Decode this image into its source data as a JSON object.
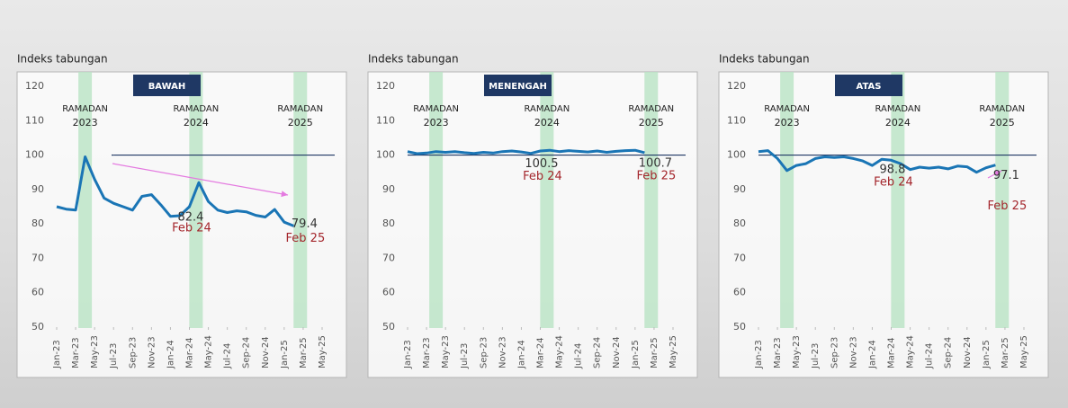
{
  "chart_data": [
    {
      "type": "line",
      "title": "BAWAH",
      "y_label": "Indeks tabungan",
      "categories": [
        "Jan-23",
        null,
        "Mar-23",
        null,
        "May-23",
        null,
        "Jul-23",
        null,
        "Sep-23",
        null,
        "Nov-23",
        null,
        "Jan-24",
        null,
        "Mar-24",
        null,
        "May-24",
        null,
        "Jul-24",
        null,
        "Sep-24",
        null,
        "Nov-24",
        null,
        "Jan-25",
        null,
        "Mar-25",
        null,
        "May-25"
      ],
      "values": [
        85,
        84.3,
        84,
        99.5,
        93,
        87.5,
        86,
        85,
        84,
        88,
        88.5,
        85.5,
        82.2,
        82.4,
        85,
        92,
        86.5,
        84,
        83.3,
        83.8,
        83.5,
        82.5,
        82,
        84.2,
        80.5,
        79.4,
        null,
        null,
        null
      ],
      "value_labels": [
        null,
        null,
        null,
        null,
        null,
        null,
        null,
        null,
        null,
        null,
        null,
        null,
        null,
        "82.4",
        null,
        null,
        null,
        null,
        null,
        null,
        null,
        null,
        null,
        null,
        null,
        "79.4",
        null,
        null,
        null
      ],
      "point_labels": [
        null,
        null,
        null,
        null,
        null,
        null,
        null,
        null,
        null,
        null,
        null,
        null,
        null,
        "Feb 24",
        null,
        null,
        null,
        null,
        null,
        null,
        null,
        null,
        null,
        null,
        null,
        "Feb 25",
        null,
        null,
        null
      ],
      "color": "#1a75b5",
      "ref_line": 100,
      "ramadan": [
        {
          "label": "RAMADAN",
          "year": "2023"
        },
        {
          "label": "RAMADAN",
          "year": "2024"
        },
        {
          "label": "RAMADAN",
          "year": "2025"
        }
      ],
      "ylim": [
        50,
        120
      ],
      "yticks": [
        50,
        60,
        70,
        80,
        90,
        100,
        110,
        120
      ]
    },
    {
      "type": "line",
      "title": "MENENGAH",
      "y_label": "Indeks tabungan",
      "categories": [
        "Jan-23",
        null,
        "Mar-23",
        null,
        "May-23",
        null,
        "Jul-23",
        null,
        "Sep-23",
        null,
        "Nov-23",
        null,
        "Jan-24",
        null,
        "Mar-24",
        null,
        "May-24",
        null,
        "Jul-24",
        null,
        "Sep-24",
        null,
        "Nov-24",
        null,
        "Jan-25",
        null,
        "Mar-25",
        null,
        "May-25"
      ],
      "values": [
        101,
        100.4,
        100.6,
        101,
        100.8,
        101,
        100.7,
        100.5,
        100.8,
        100.6,
        101,
        101.2,
        100.9,
        100.5,
        101.2,
        101.4,
        101,
        101.3,
        101.1,
        100.9,
        101.2,
        100.8,
        101.1,
        101.3,
        101.4,
        100.7,
        null,
        null,
        null
      ],
      "value_labels": [
        null,
        null,
        null,
        null,
        null,
        null,
        null,
        null,
        null,
        null,
        null,
        null,
        null,
        "100.5",
        null,
        null,
        null,
        null,
        null,
        null,
        null,
        null,
        null,
        null,
        null,
        "100.7",
        null,
        null,
        null
      ],
      "point_labels": [
        null,
        null,
        null,
        null,
        null,
        null,
        null,
        null,
        null,
        null,
        null,
        null,
        null,
        "Feb 24",
        null,
        null,
        null,
        null,
        null,
        null,
        null,
        null,
        null,
        null,
        null,
        "Feb 25",
        null,
        null,
        null
      ],
      "color": "#1a75b5",
      "ref_line": 100,
      "ramadan": [
        {
          "label": "RAMADAN",
          "year": "2023"
        },
        {
          "label": "RAMADAN",
          "year": "2024"
        },
        {
          "label": "RAMADAN",
          "year": "2025"
        }
      ],
      "ylim": [
        50,
        120
      ],
      "yticks": [
        50,
        60,
        70,
        80,
        90,
        100,
        110,
        120
      ]
    },
    {
      "type": "line",
      "title": "ATAS",
      "y_label": "Indeks tabungan",
      "categories": [
        "Jan-23",
        null,
        "Mar-23",
        null,
        "May-23",
        null,
        "Jul-23",
        null,
        "Sep-23",
        null,
        "Nov-23",
        null,
        "Jan-24",
        null,
        "Mar-24",
        null,
        "May-24",
        null,
        "Jul-24",
        null,
        "Sep-24",
        null,
        "Nov-24",
        null,
        "Jan-25",
        null,
        "Mar-25",
        null,
        "May-25"
      ],
      "values": [
        101,
        101.3,
        99,
        95.5,
        97,
        97.5,
        99,
        99.5,
        99.3,
        99.5,
        99,
        98.3,
        97,
        98.8,
        98.5,
        97.5,
        95.8,
        96.5,
        96.2,
        96.5,
        96,
        96.8,
        96.6,
        95,
        96.3,
        97.1,
        null,
        null,
        null
      ],
      "value_labels": [
        null,
        null,
        null,
        null,
        null,
        null,
        null,
        null,
        null,
        null,
        null,
        null,
        null,
        "98.8",
        null,
        null,
        null,
        null,
        null,
        null,
        null,
        null,
        null,
        null,
        null,
        "97.1",
        null,
        null,
        null
      ],
      "point_labels": [
        null,
        null,
        null,
        null,
        null,
        null,
        null,
        null,
        null,
        null,
        null,
        null,
        null,
        "Feb 24",
        null,
        null,
        null,
        null,
        null,
        null,
        null,
        null,
        null,
        null,
        null,
        "Feb 25",
        null,
        null,
        null
      ],
      "color": "#1a75b5",
      "ref_line": 100,
      "ramadan": [
        {
          "label": "RAMADAN",
          "year": "2023"
        },
        {
          "label": "RAMADAN",
          "year": "2024"
        },
        {
          "label": "RAMADAN",
          "year": "2025"
        }
      ],
      "ylim": [
        50,
        120
      ],
      "yticks": [
        50,
        60,
        70,
        80,
        90,
        100,
        110,
        120
      ]
    }
  ]
}
